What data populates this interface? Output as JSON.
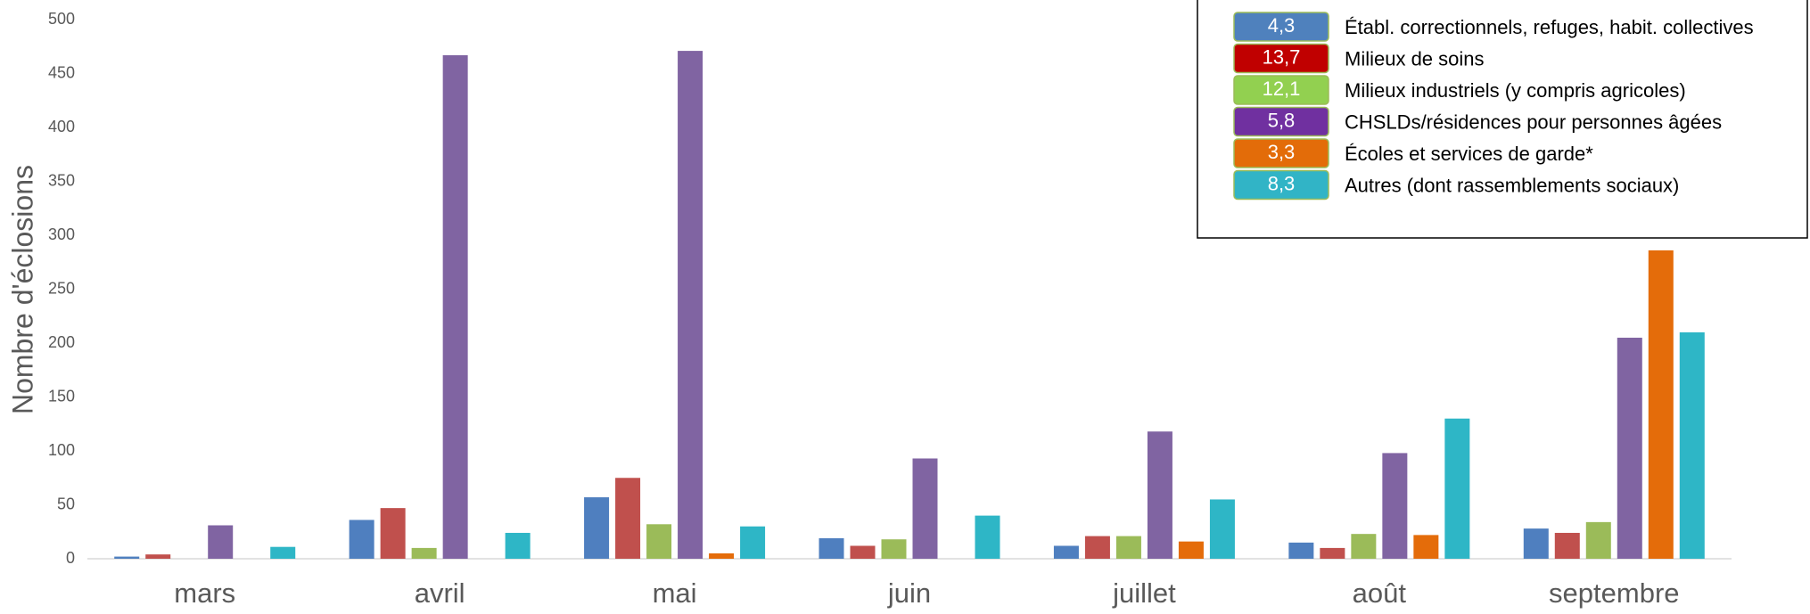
{
  "chart_data": {
    "type": "bar",
    "y_label": "Nombre d'éclosions",
    "categories": [
      "mars",
      "avril",
      "mai",
      "juin",
      "juillet",
      "août",
      "septembre"
    ],
    "series": [
      {
        "name": "Établ. correctionnels, refuges, habit. collectives",
        "badge": "4,3",
        "color": "#4f7fbf",
        "badge_color": "#4f81bd",
        "values": [
          2,
          36,
          57,
          19,
          12,
          15,
          28
        ]
      },
      {
        "name": "Milieux de soins",
        "badge": "13,7",
        "color": "#c0504d",
        "badge_color": "#c00000",
        "values": [
          4,
          47,
          75,
          12,
          21,
          10,
          24
        ]
      },
      {
        "name": "Milieux industriels (y compris agricoles)",
        "badge": "12,1",
        "color": "#9bbb59",
        "badge_color": "#92d050",
        "values": [
          0,
          10,
          32,
          18,
          21,
          23,
          34
        ]
      },
      {
        "name": "CHSLDs/résidences pour personnes âgées",
        "badge": "5,8",
        "color": "#8064a2",
        "badge_color": "#7030a0",
        "values": [
          31,
          467,
          471,
          93,
          118,
          98,
          205
        ]
      },
      {
        "name": "Écoles et services de garde*",
        "badge": "3,3",
        "color": "#e46c0a",
        "badge_color": "#e36c09",
        "values": [
          0,
          0,
          5,
          0,
          16,
          22,
          286
        ]
      },
      {
        "name": "Autres (dont rassemblements sociaux)",
        "badge": "8,3",
        "color": "#2eb6c6",
        "badge_color": "#31b4c6",
        "values": [
          11,
          24,
          30,
          40,
          55,
          130,
          210
        ]
      }
    ],
    "ylim": [
      0,
      500
    ],
    "yticks": [
      0,
      50,
      100,
      150,
      200,
      250,
      300,
      350,
      400,
      450,
      500
    ],
    "grid": false,
    "legend_position": "top-right"
  }
}
